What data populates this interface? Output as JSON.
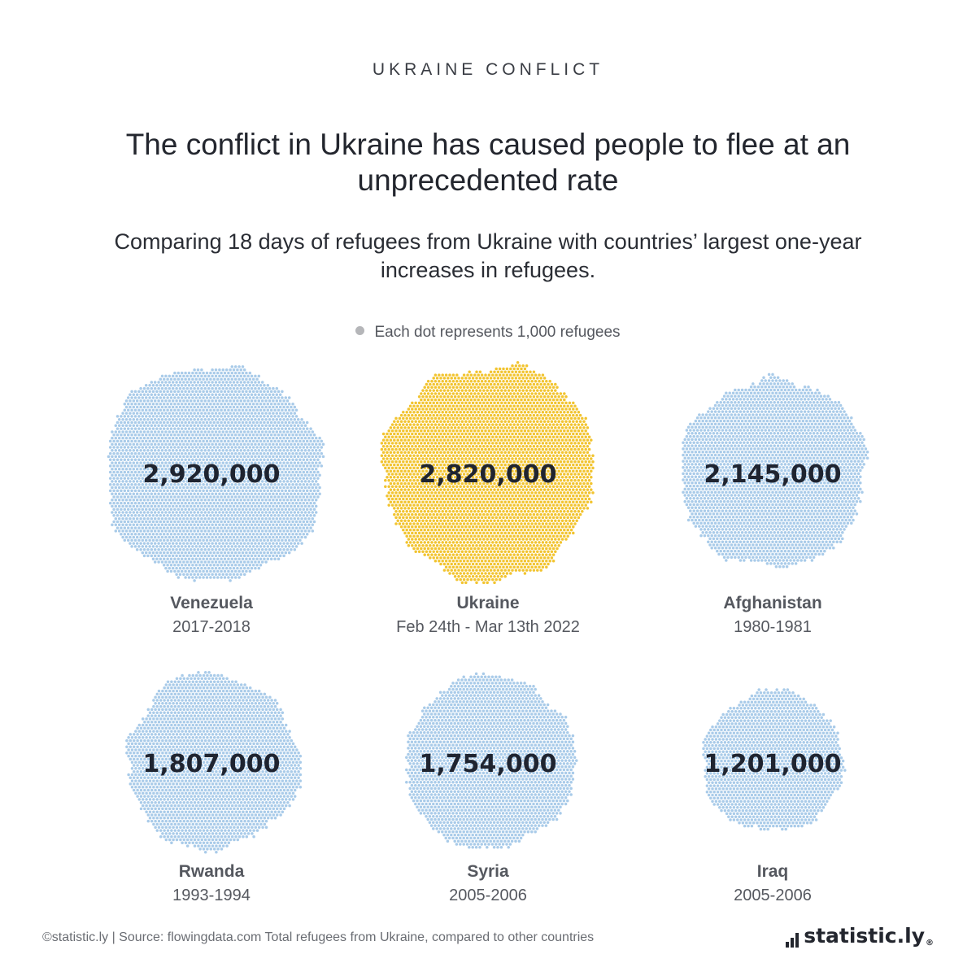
{
  "header": {
    "kicker": "UKRAINE CONFLICT",
    "title": "The conflict in Ukraine has caused people to flee at an unprecedented rate",
    "subtitle": "Comparing 18 days of refugees from Ukraine with countries’ largest one-year increases in refugees."
  },
  "legend": {
    "text": "Each dot represents 1,000 refugees"
  },
  "chart_data": {
    "type": "dot-cluster",
    "unit_per_dot": 1000,
    "colors": {
      "default": "#a9cbe9",
      "highlight": "#f2c430"
    },
    "items": [
      {
        "country": "Venezuela",
        "period": "2017-2018",
        "value": 2920000,
        "label": "2,920,000",
        "highlight": false
      },
      {
        "country": "Ukraine",
        "period": "Feb 24th - Mar 13th 2022",
        "value": 2820000,
        "label": "2,820,000",
        "highlight": true
      },
      {
        "country": "Afghanistan",
        "period": "1980-1981",
        "value": 2145000,
        "label": "2,145,000",
        "highlight": false
      },
      {
        "country": "Rwanda",
        "period": "1993-1994",
        "value": 1807000,
        "label": "1,807,000",
        "highlight": false
      },
      {
        "country": "Syria",
        "period": "2005-2006",
        "value": 1754000,
        "label": "1,754,000",
        "highlight": false
      },
      {
        "country": "Iraq",
        "period": "2005-2006",
        "value": 1201000,
        "label": "1,201,000",
        "highlight": false
      }
    ]
  },
  "footer": {
    "source": "©statistic.ly | Source: flowingdata.com Total refugees from Ukraine, compared to other countries",
    "brand": "statistic.ly",
    "brand_mark": "®"
  }
}
